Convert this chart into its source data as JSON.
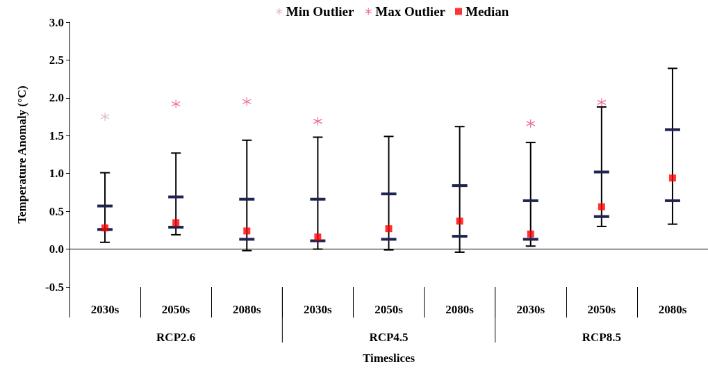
{
  "chart_data": {
    "type": "box",
    "xlabel": "Timeslices",
    "ylabel": "Temperature Anomaly (°C)",
    "categories": [
      "2030s",
      "2050s",
      "2080s",
      "2030s",
      "2050s",
      "2080s",
      "2030s",
      "2050s",
      "2080s"
    ],
    "annotations": [
      "RCP2.6",
      "RCP4.5",
      "RCP8.5"
    ],
    "ylim": [
      -0.5,
      3.0
    ],
    "yticks": [
      {
        "value": -0.5,
        "label": "-0.5"
      },
      {
        "value": 0,
        "label": "0.0"
      },
      {
        "value": 0.5,
        "label": "0.5"
      },
      {
        "value": 1,
        "label": "1.0"
      },
      {
        "value": 1.5,
        "label": "1.5"
      },
      {
        "value": 2,
        "label": "2.0"
      },
      {
        "value": 2.5,
        "label": "2.5"
      },
      {
        "value": 3,
        "label": "3.0"
      }
    ],
    "ref_lines": [
      {
        "axis": "y",
        "value": 0,
        "color": "#000000"
      }
    ],
    "legend": "top",
    "series": [
      {
        "type": "scatter",
        "name": "Min Outlier",
        "color": "#d4a5b8",
        "marker": "cross",
        "values": [
          1.75,
          null,
          null,
          null,
          null,
          null,
          null,
          null,
          null
        ]
      },
      {
        "type": "scatter",
        "name": "Max Outlier",
        "color": "#e8457f",
        "marker": "cross",
        "values": [
          null,
          1.92,
          1.95,
          1.69,
          null,
          null,
          1.66,
          1.94,
          null
        ]
      },
      {
        "type": "scatter",
        "name": "Median",
        "color": "#ff0000",
        "marker": "square",
        "values": [
          0.28,
          0.35,
          0.24,
          0.16,
          0.27,
          0.37,
          0.2,
          0.56,
          0.94
        ]
      },
      {
        "color": "#1f2350",
        "boxes": [
          {
            "low": 0.09,
            "q1": 0.26,
            "q3": 0.57,
            "high": 1.01
          },
          {
            "low": 0.19,
            "q1": 0.29,
            "q3": 0.69,
            "high": 1.27
          },
          {
            "low": -0.02,
            "q1": 0.13,
            "q3": 0.66,
            "high": 1.44
          },
          {
            "low": 0.0,
            "q1": 0.11,
            "q3": 0.66,
            "high": 1.48
          },
          {
            "low": -0.01,
            "q1": 0.13,
            "q3": 0.73,
            "high": 1.49
          },
          {
            "low": -0.04,
            "q1": 0.17,
            "q3": 0.84,
            "high": 1.62
          },
          {
            "low": 0.04,
            "q1": 0.13,
            "q3": 0.64,
            "high": 1.41
          },
          {
            "low": 0.3,
            "q1": 0.43,
            "q3": 1.02,
            "high": 1.88
          },
          {
            "low": 0.33,
            "q1": 0.64,
            "q3": 1.58,
            "high": 2.39
          }
        ]
      }
    ]
  }
}
